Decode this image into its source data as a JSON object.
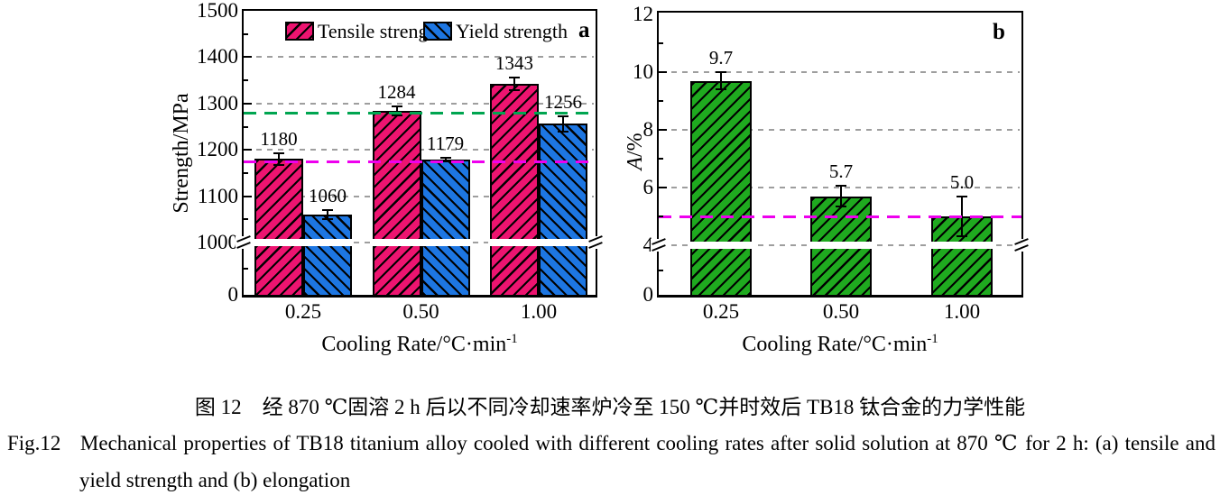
{
  "figure": {
    "background": "#ffffff",
    "caption": {
      "chinese": "图 12　经 870 ℃固溶 2 h 后以不同冷却速率炉冷至 150 ℃并时效后 TB18 钛合金的力学性能",
      "english_line1": "Fig.12   Mechanical properties of TB18 titanium alloy cooled with different cooling rates after solid solution at 870 ℃ for 2 h: (a) tensile and",
      "english_line2": "yield strength and (b) elongation"
    }
  },
  "colors": {
    "tensile": "#ED1470",
    "yield": "#1D76E2",
    "elongation": "#1FAA1F",
    "ref_green": "#00A550",
    "ref_magenta": "#EE00EE",
    "grid": "#9E9E9E",
    "axis": "#000000"
  },
  "chart_data": [
    {
      "id": "a",
      "type": "bar",
      "panel_label": "a",
      "categories": [
        "0.25",
        "0.50",
        "1.00"
      ],
      "series": [
        {
          "name": "Tensile strength",
          "color": "#ED1470",
          "hatch": "/",
          "values": [
            1180,
            1284,
            1343
          ],
          "labels": [
            "1180",
            "1284",
            "1343"
          ],
          "errors": [
            12,
            10,
            14
          ]
        },
        {
          "name": "Yield strength",
          "color": "#1D76E2",
          "hatch": "\\",
          "values": [
            1060,
            1179,
            1256
          ],
          "labels": [
            "1060",
            "1179",
            "1256"
          ],
          "errors": [
            10,
            4,
            16
          ]
        }
      ],
      "xlabel": {
        "text": "Cooling Rate/°C·min",
        "sup": "-1"
      },
      "ylabel": {
        "italic": "",
        "text": "Strength/MPa"
      },
      "ylim": [
        0,
        1500
      ],
      "axis_break": 1000,
      "yticks": [
        {
          "value": 1500,
          "label": "1500"
        },
        {
          "value": 1400,
          "label": "1400"
        },
        {
          "value": 1300,
          "label": "1300"
        },
        {
          "value": 1200,
          "label": "1200"
        },
        {
          "value": 1100,
          "label": "1100"
        },
        {
          "value": 1000,
          "label": "1000"
        },
        {
          "value": 0,
          "label": "0"
        }
      ],
      "yticks_minor": [
        1450,
        1350,
        1250,
        1150,
        1050,
        500
      ],
      "grid_lines": [
        1400,
        1300,
        1200,
        1100,
        1000
      ],
      "ref_lines": [
        {
          "value": 1280,
          "color": "#00A550"
        },
        {
          "value": 1175,
          "color": "#EE00EE"
        }
      ],
      "legend": {
        "show": true
      }
    },
    {
      "id": "b",
      "type": "bar",
      "panel_label": "b",
      "categories": [
        "0.25",
        "0.50",
        "1.00"
      ],
      "series": [
        {
          "name": "Elongation",
          "color": "#1FAA1F",
          "hatch": "/",
          "values": [
            9.7,
            5.7,
            5.0
          ],
          "labels": [
            "9.7",
            "5.7",
            "5.0"
          ],
          "errors": [
            0.3,
            0.35,
            0.7
          ]
        }
      ],
      "xlabel": {
        "text": "Cooling Rate/°C·min",
        "sup": "-1"
      },
      "ylabel": {
        "italic": "A",
        "text": "/%"
      },
      "ylim": [
        0,
        12
      ],
      "axis_break": 4,
      "yticks": [
        {
          "value": 12,
          "label": "12"
        },
        {
          "value": 10,
          "label": "10"
        },
        {
          "value": 8,
          "label": "8"
        },
        {
          "value": 6,
          "label": "6"
        },
        {
          "value": 4,
          "label": "4"
        },
        {
          "value": 0,
          "label": "0"
        }
      ],
      "yticks_minor": [
        11,
        9,
        7,
        5,
        2
      ],
      "grid_lines": [
        10,
        8,
        6,
        4
      ],
      "ref_lines": [
        {
          "value": 5.0,
          "color": "#EE00EE"
        }
      ],
      "legend": {
        "show": false
      }
    }
  ]
}
